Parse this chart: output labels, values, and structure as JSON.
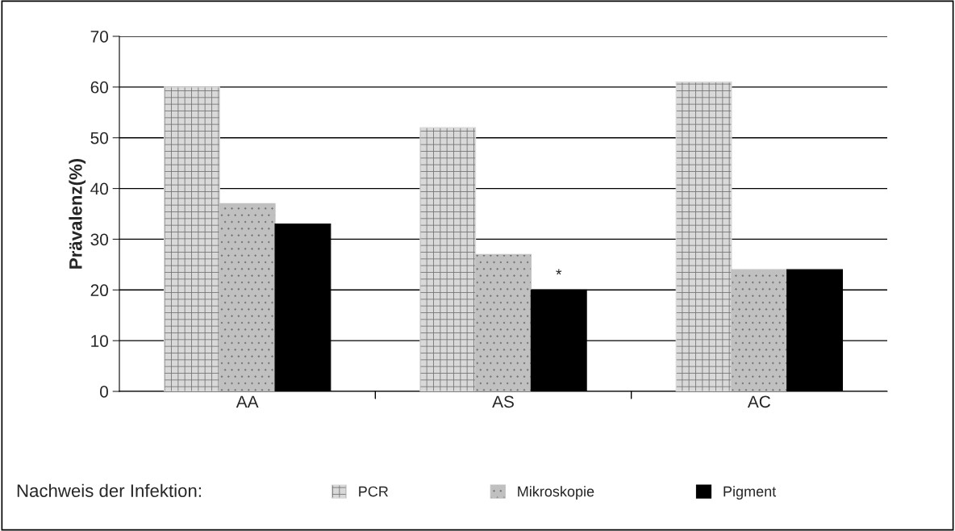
{
  "chart_data": {
    "type": "bar",
    "ylabel": "Prävalenz(%)",
    "legend_title": "Nachweis der Infektion:",
    "categories": [
      "AA",
      "AS",
      "AC"
    ],
    "series": [
      {
        "name": "PCR",
        "color": "#d9d9d9",
        "values": [
          60,
          52,
          61
        ]
      },
      {
        "name": "Mikroskopie",
        "color": "#c0c0c0",
        "values": [
          37,
          27,
          24
        ]
      },
      {
        "name": "Pigment",
        "color": "#000000",
        "values": [
          33,
          20,
          24
        ]
      }
    ],
    "ylim": [
      0,
      70
    ],
    "yticks": [
      0,
      10,
      20,
      30,
      40,
      50,
      60,
      70
    ],
    "grid": "y",
    "legend": "bottom",
    "annotations": [
      "*"
    ]
  }
}
